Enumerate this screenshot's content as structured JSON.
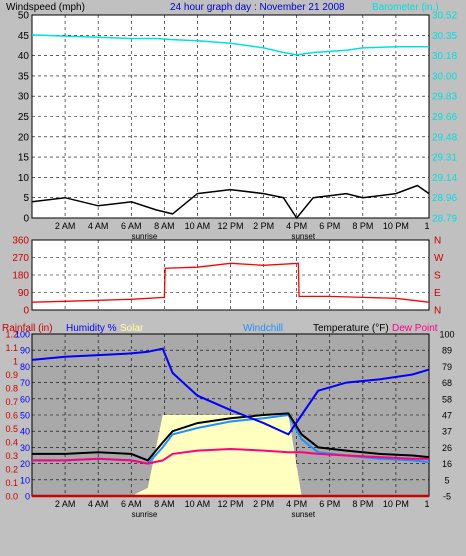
{
  "header": {
    "left_title": "Windspeed (mph)",
    "center_title": "24 hour graph day : November 21 2008",
    "right_title": "Barometer (in.)"
  },
  "time_axis": {
    "ticks": [
      "2 AM",
      "4 AM",
      "6 AM",
      "8 AM",
      "10 AM",
      "12 PM",
      "2 PM",
      "4 PM",
      "6 PM",
      "8 PM",
      "10 PM",
      "1"
    ],
    "sunrise_label": "sunrise",
    "sunset_label": "sunset"
  },
  "colors": {
    "windspeed": "#000000",
    "gust": "#707070",
    "avg_wind": "#0000cc",
    "barometer": "#00e0e0",
    "direction": "#ff0000",
    "humidity": "#0000ff",
    "temperature": "#000000",
    "windchill": "#1e90ff",
    "dewpoint": "#ff0080",
    "solar": "#ffffc0",
    "rain": "#cc0000"
  },
  "legend": {
    "rain": "Rainfall (in)",
    "humidity": "Humidity %",
    "solar": "Solar",
    "windchill": "Windchill",
    "temperature": "Temperature (°F)",
    "dewpoint": "Dew Point"
  },
  "chart_data": [
    {
      "type": "line",
      "title": "Windspeed (mph)",
      "ylabel": "Windspeed (mph)",
      "y2label": "Barometer (in.)",
      "ylim": [
        0,
        50
      ],
      "y2lim": [
        28.79,
        30.52
      ],
      "yticks": [
        "50",
        "45",
        "40",
        "35",
        "30",
        "25",
        "20",
        "15",
        "10",
        "5",
        "0"
      ],
      "y2ticks": [
        "30.52",
        "30.35",
        "30.18",
        "30.00",
        "29.83",
        "29.66",
        "29.48",
        "29.31",
        "29.14",
        "28.96",
        "28.79"
      ],
      "x_hours": [
        0,
        2,
        4,
        6,
        7.5,
        8.5,
        10,
        12,
        14,
        15.2,
        16,
        17,
        19,
        20,
        22,
        23.3,
        24
      ],
      "series": [
        {
          "name": "Windspeed",
          "values": [
            4,
            5,
            3,
            4,
            2,
            1,
            6,
            7,
            6,
            5,
            0,
            5,
            6,
            5,
            6,
            8,
            6
          ]
        },
        {
          "name": "Barometer",
          "axis": "right",
          "values": [
            30.35,
            30.34,
            30.33,
            30.32,
            30.32,
            30.31,
            30.3,
            30.28,
            30.24,
            30.2,
            30.18,
            30.2,
            30.22,
            30.24,
            30.25,
            30.25,
            30.25
          ]
        }
      ]
    },
    {
      "type": "line",
      "title": "Wind direction",
      "ylim": [
        0,
        360
      ],
      "yticks": [
        "360",
        "270",
        "180",
        "90",
        "0"
      ],
      "y2ticks": [
        "N",
        "W",
        "S",
        "E",
        "N"
      ],
      "x_hours": [
        0,
        2,
        4,
        6,
        8,
        8.05,
        10,
        12,
        14,
        16.1,
        16.15,
        18,
        20,
        22,
        24
      ],
      "series": [
        {
          "name": "Direction",
          "values": [
            40,
            45,
            50,
            55,
            65,
            215,
            220,
            240,
            230,
            240,
            70,
            70,
            65,
            60,
            40
          ]
        }
      ]
    },
    {
      "type": "line",
      "ylabel": "Humidity %",
      "ylim": [
        0,
        100
      ],
      "yticks_rain": [
        "1.2",
        "1.1",
        "1",
        "0.9",
        "0.8",
        "0.7",
        "0.6",
        "0.5",
        "0.4",
        "0.3",
        "0.2",
        "0.1",
        "0.0"
      ],
      "yticks_humidity": [
        "100",
        "90",
        "80",
        "70",
        "60",
        "50",
        "40",
        "30",
        "20",
        "10",
        "0"
      ],
      "yticks_temp": [
        "100",
        "89",
        "79",
        "68",
        "58",
        "47",
        "37",
        "26",
        "16",
        "5",
        "-5"
      ],
      "x_hours": [
        0,
        2,
        4,
        6,
        7,
        7.9,
        8.5,
        10,
        12,
        14,
        15.5,
        16.3,
        17.3,
        19,
        21,
        23,
        24
      ],
      "series": [
        {
          "name": "Humidity",
          "values": [
            84,
            86,
            87,
            88,
            89,
            91,
            76,
            62,
            53,
            45,
            38,
            50,
            65,
            70,
            72,
            75,
            78
          ]
        },
        {
          "name": "Temperature",
          "values": [
            26,
            26,
            27,
            26,
            22,
            33,
            40,
            45,
            48,
            50,
            51,
            38,
            30,
            28,
            26,
            25,
            24
          ]
        },
        {
          "name": "Windchill",
          "values": [
            22,
            22,
            23,
            22,
            20,
            30,
            38,
            42,
            46,
            48,
            50,
            35,
            27,
            25,
            23,
            22,
            21
          ]
        },
        {
          "name": "Dew Point",
          "values": [
            22,
            22,
            23,
            22,
            20,
            22,
            26,
            28,
            29,
            28,
            27,
            27,
            26,
            25,
            24,
            23,
            23
          ]
        },
        {
          "name": "Solar",
          "values": [
            0,
            0,
            0,
            0,
            5,
            50,
            50,
            50,
            50,
            50,
            50,
            0,
            0,
            0,
            0,
            0,
            0
          ]
        },
        {
          "name": "Rainfall",
          "values": [
            0,
            0,
            0,
            0,
            0,
            0,
            0,
            0,
            0,
            0,
            0,
            0,
            0,
            0,
            0,
            0,
            0
          ]
        }
      ]
    }
  ]
}
